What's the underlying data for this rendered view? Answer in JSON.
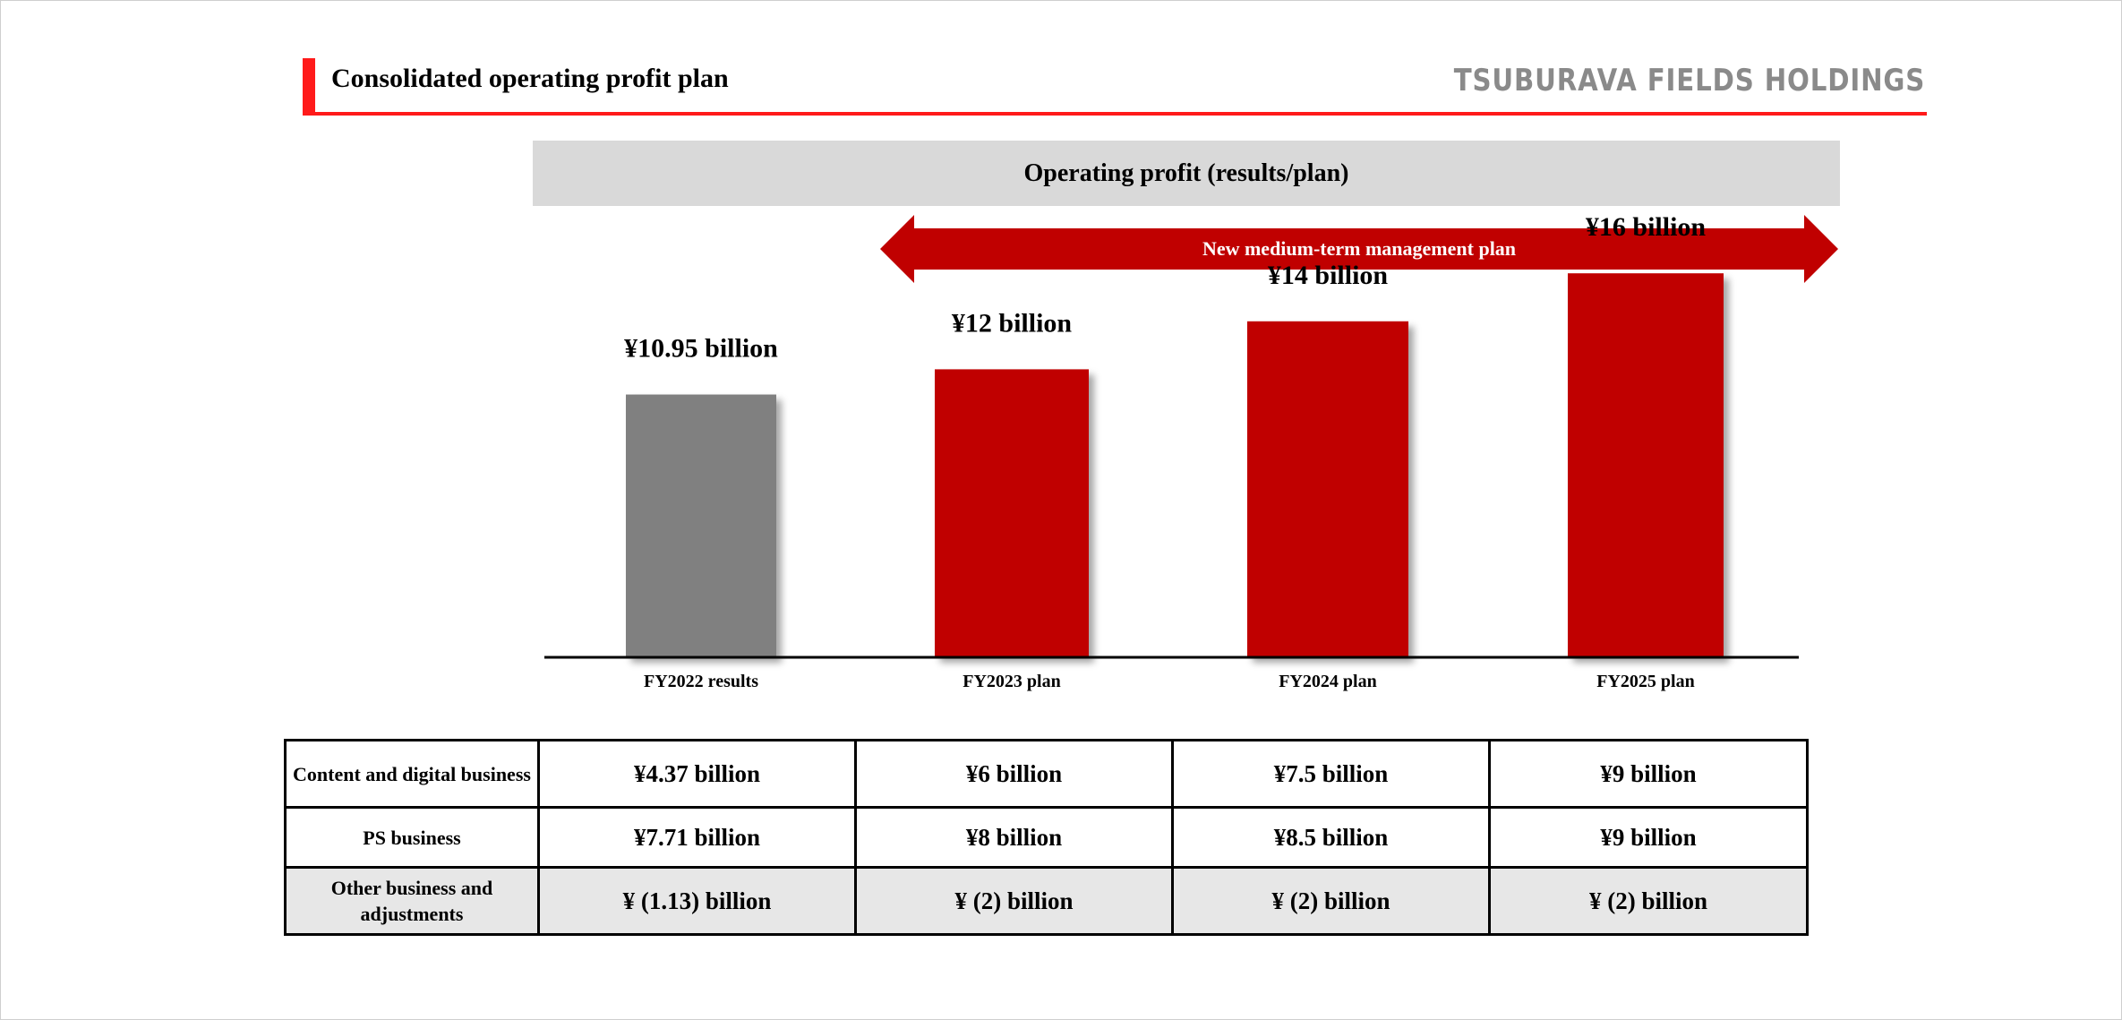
{
  "header": {
    "title": "Consolidated operating profit plan",
    "logo_text": "TSUBURAVA FIELDS HOLDINGS"
  },
  "banner": {
    "label": "Operating profit (results/plan)"
  },
  "plan_arrow": {
    "label": "New medium-term management plan"
  },
  "colors": {
    "accent_red": "#c00000",
    "results_gray": "#808080",
    "header_red": "#ff1a1a"
  },
  "chart_data": {
    "type": "bar",
    "categories": [
      "FY2022 results",
      "FY2023 plan",
      "FY2024 plan",
      "FY2025 plan"
    ],
    "values": [
      10.95,
      12,
      14,
      16
    ],
    "data_labels": [
      "¥10.95 billion",
      "¥12 billion",
      "¥14 billion",
      "¥16 billion"
    ],
    "bar_colors": [
      "#808080",
      "#c00000",
      "#c00000",
      "#c00000"
    ],
    "title": "Operating profit (results/plan)",
    "xlabel": "",
    "ylabel": "",
    "grid": false
  },
  "breakdown_table": {
    "rows": [
      {
        "label": "Content and digital business",
        "values": [
          "¥4.37 billion",
          "¥6 billion",
          "¥7.5 billion",
          "¥9 billion"
        ]
      },
      {
        "label": "PS business",
        "values": [
          "¥7.71 billion",
          "¥8 billion",
          "¥8.5 billion",
          "¥9 billion"
        ]
      },
      {
        "label": "Other business and adjustments",
        "values": [
          "¥ (1.13) billion",
          "¥ (2) billion",
          "¥ (2) billion",
          "¥ (2) billion"
        ]
      }
    ]
  }
}
